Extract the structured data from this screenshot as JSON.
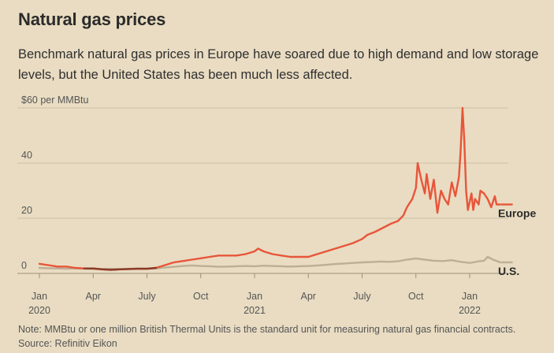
{
  "header": {
    "title": "Natural gas prices",
    "subtitle": "Benchmark natural gas prices in Europe have soared due to high demand and low storage levels, but the United States has been much less affected."
  },
  "footer": {
    "note": "Note: MMBtu or one million British Thermal Units is the standard unit for measuring natural gas financial contracts.",
    "source": "Source: Refinitiv Eikon"
  },
  "colors": {
    "europe": "#e8553a",
    "us": "#bdae94",
    "overlap": "#8a3a28",
    "grid": "#cbbfa6",
    "background": "#e9dcc2"
  },
  "chart_data": {
    "type": "line",
    "title": "Natural gas prices",
    "ylabel": "$ per MMBtu",
    "ylim": [
      0,
      60
    ],
    "yticks": [
      {
        "value": 0,
        "label": "0"
      },
      {
        "value": 20,
        "label": "20"
      },
      {
        "value": 40,
        "label": "40"
      },
      {
        "value": 60,
        "label": "$60 per MMBtu"
      }
    ],
    "xlim": [
      0,
      26.5
    ],
    "xticks": [
      {
        "value": 0,
        "line1": "Jan",
        "line2": "2020"
      },
      {
        "value": 3,
        "line1": "Apr",
        "line2": ""
      },
      {
        "value": 6,
        "line1": "July",
        "line2": ""
      },
      {
        "value": 9,
        "line1": "Oct",
        "line2": ""
      },
      {
        "value": 12,
        "line1": "Jan",
        "line2": "2021"
      },
      {
        "value": 15,
        "line1": "Apr",
        "line2": ""
      },
      {
        "value": 18,
        "line1": "July",
        "line2": ""
      },
      {
        "value": 21,
        "line1": "Oct",
        "line2": ""
      },
      {
        "value": 24,
        "line1": "Jan",
        "line2": "2022"
      }
    ],
    "series": [
      {
        "name": "Europe",
        "label": "Europe",
        "x": [
          0,
          0.5,
          1,
          1.5,
          2,
          2.5,
          3,
          3.5,
          4,
          4.5,
          5,
          5.5,
          6,
          6.5,
          7,
          7.5,
          8,
          8.5,
          9,
          9.5,
          10,
          10.5,
          11,
          11.5,
          12,
          12.2,
          12.5,
          13,
          13.5,
          14,
          14.5,
          15,
          15.5,
          16,
          16.5,
          17,
          17.5,
          18,
          18.3,
          18.7,
          19,
          19.3,
          19.6,
          20,
          20.3,
          20.5,
          20.8,
          21,
          21.1,
          21.3,
          21.5,
          21.6,
          21.8,
          22,
          22.2,
          22.4,
          22.6,
          22.8,
          23,
          23.2,
          23.4,
          23.5,
          23.6,
          23.7,
          23.8,
          23.9,
          24,
          24.1,
          24.2,
          24.3,
          24.5,
          24.6,
          24.8,
          25,
          25.2,
          25.4,
          25.5,
          25.7
        ],
        "values": [
          3.5,
          3,
          2.5,
          2.5,
          2,
          1.8,
          1.8,
          1.5,
          1.3,
          1.5,
          1.6,
          1.7,
          1.7,
          2,
          3,
          4,
          4.5,
          5,
          5.5,
          6,
          6.5,
          6.5,
          6.5,
          7,
          8,
          9,
          8,
          7,
          6.5,
          6,
          6,
          6,
          7,
          8,
          9,
          10,
          11,
          12.5,
          14,
          15,
          16,
          17,
          18,
          19,
          21,
          24,
          27,
          31,
          40,
          34,
          29,
          36,
          27,
          34,
          22,
          30,
          27,
          25,
          33,
          28,
          35,
          45,
          60,
          48,
          30,
          23,
          26,
          29,
          23,
          27,
          25,
          30,
          29,
          27,
          24,
          28,
          25,
          25
        ],
        "color": "#e8553a"
      },
      {
        "name": "U.S.",
        "label": "U.S.",
        "x": [
          0,
          0.5,
          1,
          1.5,
          2,
          2.5,
          3,
          3.5,
          4,
          4.5,
          5,
          5.5,
          6,
          6.5,
          7,
          7.5,
          8,
          8.5,
          9,
          9.5,
          10,
          10.5,
          11,
          11.5,
          12,
          12.5,
          13,
          13.5,
          14,
          14.5,
          15,
          15.5,
          16,
          16.5,
          17,
          17.5,
          18,
          18.5,
          19,
          19.5,
          20,
          20.5,
          21,
          21.5,
          22,
          22.5,
          23,
          23.5,
          24,
          24.2,
          24.5,
          24.8,
          25,
          25.3,
          25.7
        ],
        "values": [
          2,
          1.9,
          1.8,
          1.7,
          1.8,
          1.7,
          1.6,
          1.6,
          1.7,
          1.6,
          1.7,
          1.8,
          1.7,
          1.8,
          2.1,
          2.4,
          2.7,
          2.9,
          2.7,
          2.6,
          2.4,
          2.5,
          2.6,
          2.7,
          2.6,
          2.8,
          2.7,
          2.6,
          2.5,
          2.6,
          2.7,
          2.9,
          3.1,
          3.4,
          3.6,
          3.8,
          4,
          4.1,
          4.3,
          4.2,
          4.4,
          5,
          5.4,
          5,
          4.6,
          4.5,
          4.8,
          4.2,
          3.8,
          4,
          4.4,
          4.6,
          6,
          5,
          4
        ],
        "color": "#bdae94"
      }
    ]
  }
}
